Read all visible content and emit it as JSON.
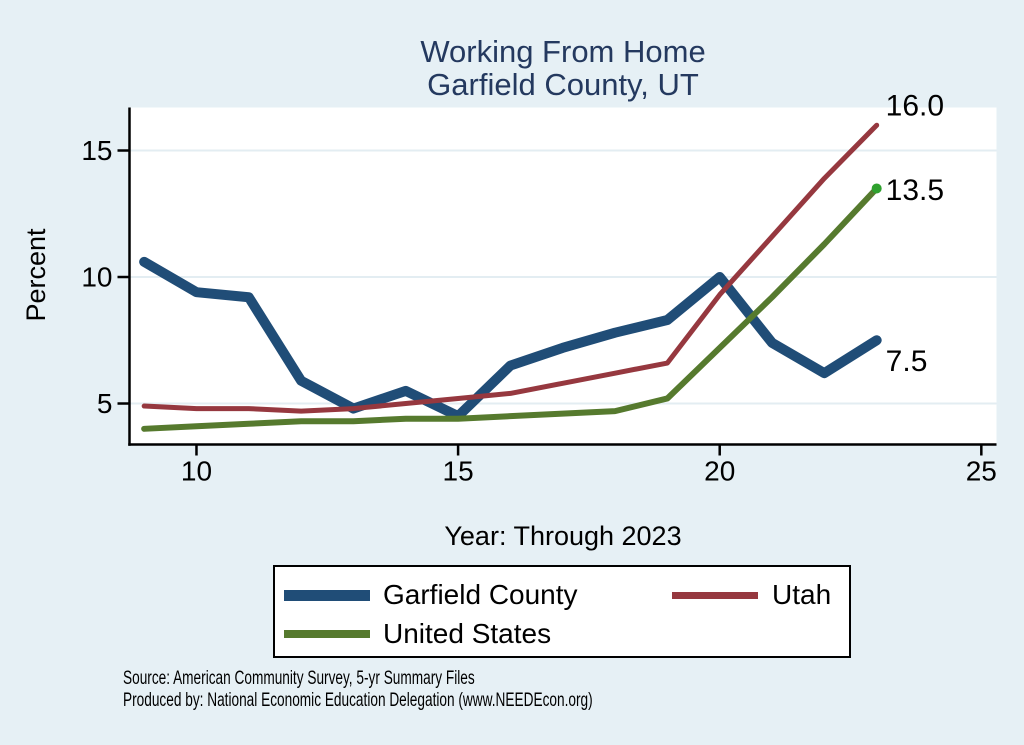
{
  "header": {
    "title_line1": "Working From Home",
    "title_line2": "Garfield County, UT"
  },
  "chart_data": {
    "type": "line",
    "title": "Working From Home",
    "subtitle": "Garfield County, UT",
    "xlabel": "Year: Through 2023",
    "ylabel": "Percent",
    "x": [
      9,
      10,
      11,
      12,
      13,
      14,
      15,
      16,
      17,
      18,
      19,
      20,
      21,
      22,
      23
    ],
    "x_ticks": [
      10,
      15,
      20,
      25
    ],
    "y_ticks": [
      5,
      10,
      15
    ],
    "xlim": [
      8.72,
      25.29
    ],
    "ylim": [
      3.38,
      16.7
    ],
    "grid": "horizontal-only",
    "legend_position": "bottom",
    "draw_order": [
      0,
      2,
      1
    ],
    "series": [
      {
        "name": "Garfield County",
        "color": "#204d77",
        "line_width": 10,
        "values": [
          10.6,
          9.4,
          9.2,
          5.9,
          4.8,
          5.5,
          4.5,
          6.5,
          7.2,
          7.8,
          8.3,
          10.0,
          7.4,
          6.2,
          7.5
        ],
        "end_label": "7.5",
        "end_label_dy": 21
      },
      {
        "name": "Utah",
        "color": "#96383f",
        "line_width": 5,
        "values": [
          4.9,
          4.8,
          4.8,
          4.7,
          4.8,
          5.0,
          5.2,
          5.4,
          5.8,
          6.2,
          6.6,
          9.3,
          11.6,
          13.9,
          16.0
        ],
        "end_label": "16.0",
        "end_label_dy": -19
      },
      {
        "name": "United States",
        "color": "#567a2e",
        "line_width": 6,
        "values": [
          4.0,
          4.1,
          4.2,
          4.3,
          4.3,
          4.4,
          4.4,
          4.5,
          4.6,
          4.7,
          5.2,
          7.2,
          9.2,
          11.3,
          13.5
        ],
        "end_label": "13.5",
        "end_label_dy": 2,
        "end_marker_color": "#2fa12e"
      }
    ]
  },
  "footer": {
    "source_line": "Source: American Community Survey, 5-yr Summary Files",
    "produced_line": "Produced by: National Economic Education Delegation (www.NEEDEcon.org)"
  },
  "theme": {
    "background": "#e6f0f5",
    "plot_background": "#ffffff",
    "gridline": "#e3edf2",
    "axis": "#000000",
    "title_color": "#24395f",
    "text_color": "#000000"
  }
}
